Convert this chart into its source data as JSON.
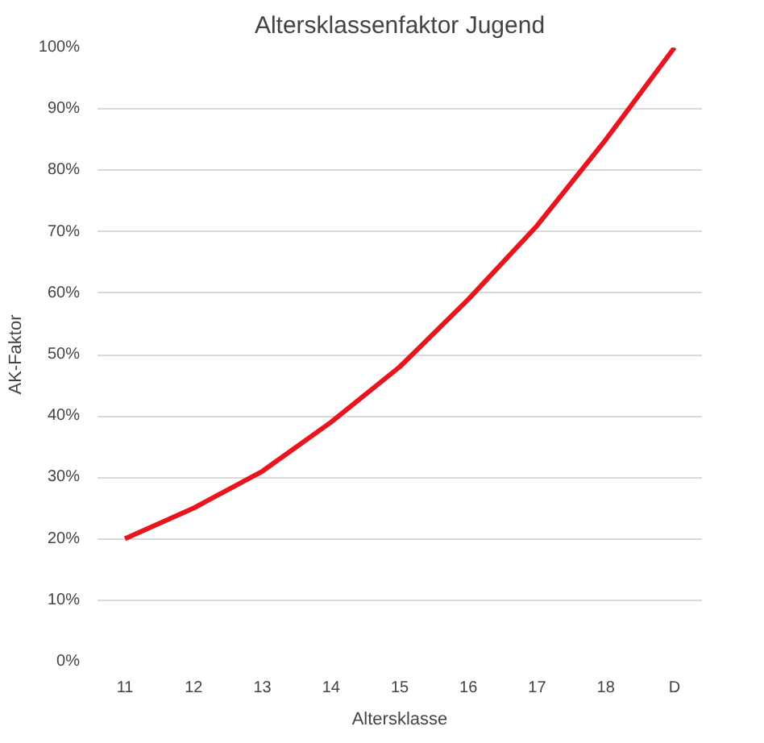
{
  "chart_data": {
    "type": "line",
    "title": "Altersklassenfaktor Jugend",
    "xlabel": "Altersklasse",
    "ylabel": "AK-Faktor",
    "categories": [
      "11",
      "12",
      "13",
      "14",
      "15",
      "16",
      "17",
      "18",
      "D"
    ],
    "series": [
      {
        "color": "#e8141e",
        "values": [
          0.2,
          0.25,
          0.31,
          0.39,
          0.48,
          0.59,
          0.71,
          0.85,
          1.0
        ]
      }
    ],
    "ylim": [
      0,
      1.0
    ],
    "yticks": [
      {
        "value": 0,
        "label": "0%"
      },
      {
        "value": 0.1,
        "label": "10%"
      },
      {
        "value": 0.2,
        "label": "20%"
      },
      {
        "value": 0.3,
        "label": "30%"
      },
      {
        "value": 0.4,
        "label": "40%"
      },
      {
        "value": 0.5,
        "label": "50%"
      },
      {
        "value": 0.6,
        "label": "60%"
      },
      {
        "value": 0.7,
        "label": "70%"
      },
      {
        "value": 0.8,
        "label": "80%"
      },
      {
        "value": 0.9,
        "label": "90%"
      },
      {
        "value": 1.0,
        "label": "100%"
      }
    ],
    "grid": "y",
    "marker": "none",
    "line_style": "solid"
  }
}
